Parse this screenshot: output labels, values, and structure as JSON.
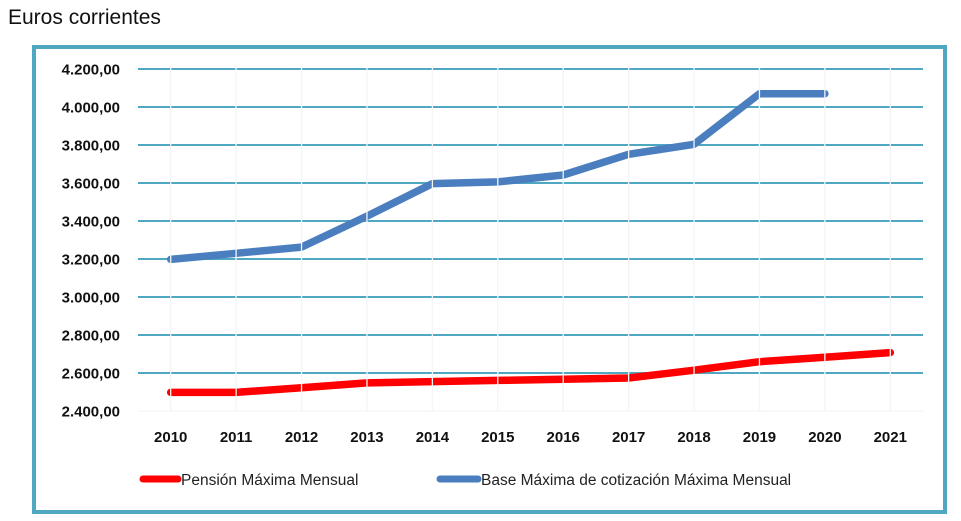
{
  "caption": "Euros corrientes",
  "colors": {
    "frame": "#4fa8c2",
    "gridline": "#4fa8c2",
    "pension": "#ff0000",
    "base": "#4a7ebf"
  },
  "chart_data": {
    "type": "line",
    "title": "",
    "xlabel": "",
    "ylabel": "Euros corrientes",
    "categories": [
      "2010",
      "2011",
      "2012",
      "2013",
      "2014",
      "2015",
      "2016",
      "2017",
      "2018",
      "2019",
      "2020",
      "2021"
    ],
    "ylim": [
      2400,
      4200
    ],
    "yticks": [
      2400,
      2600,
      2800,
      3000,
      3200,
      3400,
      3600,
      3800,
      4000,
      4200
    ],
    "ytick_labels": [
      "2.400,00",
      "2.600,00",
      "2.800,00",
      "3.000,00",
      "3.200,00",
      "3.400,00",
      "3.600,00",
      "3.800,00",
      "4.000,00",
      "4.200,00"
    ],
    "grid": true,
    "legend_position": "bottom",
    "series": [
      {
        "name": "Pensión Máxima Mensual",
        "color": "#ff0000",
        "values": [
          2497.91,
          2497.91,
          2522.89,
          2548.12,
          2554.49,
          2560.88,
          2567.28,
          2573.7,
          2614.96,
          2659.41,
          2683.34,
          2707.49
        ]
      },
      {
        "name": "Base Máxima de cotización Máxima Mensual",
        "color": "#4a7ebf",
        "values": [
          3198.0,
          3230.1,
          3262.5,
          3425.7,
          3597.0,
          3606.0,
          3642.0,
          3751.2,
          3803.7,
          4070.1,
          4070.1,
          null
        ]
      }
    ]
  }
}
